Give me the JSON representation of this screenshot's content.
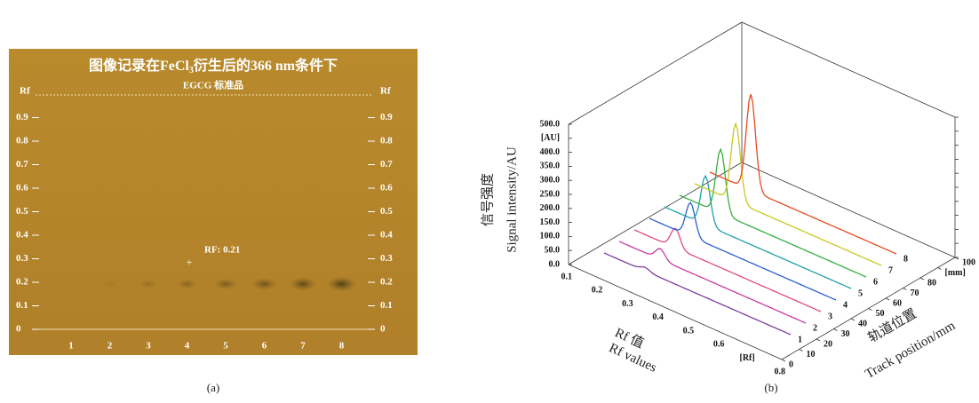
{
  "panel_a": {
    "title_before": "图像记录在FeCl",
    "title_sub": "3",
    "title_after": "衍生后的366 nm条件下",
    "subtitle": "EGCG 标准品",
    "axis_label_left": "Rf",
    "axis_label_right": "Rf",
    "ticks": [
      "0",
      "0.1",
      "0.2",
      "0.3",
      "0.4",
      "0.5",
      "0.6",
      "0.7",
      "0.8",
      "0.9"
    ],
    "lanes": [
      "1",
      "2",
      "3",
      "4",
      "5",
      "6",
      "7",
      "8"
    ],
    "annotation": "RF: 0.21",
    "caption": "(a)"
  },
  "panel_b": {
    "y_ticks": [
      "0.0",
      "50.0",
      "100.0",
      "150.0",
      "200.0",
      "250.0",
      "300.0",
      "350.0",
      "400.0",
      "[AU]",
      "500.0"
    ],
    "y_title_cn": "信号强度",
    "y_title_en": "Signal intensity/AU",
    "rf_ticks": [
      "0.1",
      "0.2",
      "0.3",
      "0.4",
      "0.5",
      "0.6",
      "[Rf]",
      "0.8"
    ],
    "rf_title_cn": "Rf 值",
    "rf_title_en": "Rf values",
    "track_ticks": [
      "0",
      "10",
      "20",
      "30",
      "40",
      "50",
      "60",
      "70",
      "80",
      "[mm]",
      "100"
    ],
    "track_title_cn": "轨道位置",
    "track_title_en": "Track position/mm",
    "tracks": [
      "1",
      "2",
      "3",
      "4",
      "5",
      "6",
      "7",
      "8"
    ],
    "caption": "(b)"
  }
}
